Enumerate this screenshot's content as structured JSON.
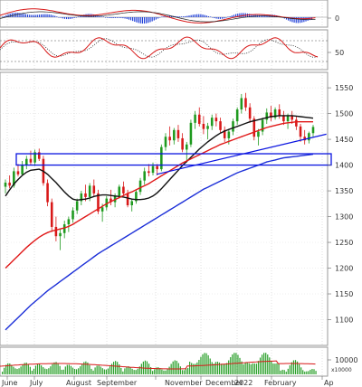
{
  "chart_data": [
    {
      "type": "bar+line",
      "panel": "macd",
      "y_ticks": [
        "0"
      ],
      "series": [
        {
          "kind": "histogram",
          "color": "#1f3fd8"
        },
        {
          "kind": "line",
          "color": "#d81818"
        },
        {
          "kind": "line",
          "color": "#222222"
        }
      ]
    },
    {
      "type": "line",
      "panel": "stochastic",
      "y_ticks": [
        "50"
      ],
      "series": [
        {
          "kind": "line",
          "color": "#d81818"
        },
        {
          "kind": "line",
          "color": "#222222",
          "style": "dotted"
        }
      ]
    },
    {
      "type": "candlestick",
      "panel": "price",
      "ylim": [
        1050,
        1580
      ],
      "y_ticks": [
        "1550",
        "1500",
        "1450",
        "1400",
        "1350",
        "1300",
        "1250",
        "1200",
        "1150",
        "1100"
      ],
      "x_ticks": [
        "June",
        "July",
        "August",
        "September",
        "November",
        "December",
        "2022",
        "February",
        "Ap"
      ],
      "candles": [
        [
          1358,
          1372,
          1345,
          1366
        ],
        [
          1366,
          1380,
          1355,
          1360
        ],
        [
          1360,
          1395,
          1356,
          1388
        ],
        [
          1388,
          1402,
          1378,
          1382
        ],
        [
          1382,
          1408,
          1380,
          1400
        ],
        [
          1400,
          1418,
          1392,
          1412
        ],
        [
          1412,
          1428,
          1400,
          1405
        ],
        [
          1405,
          1430,
          1398,
          1425
        ],
        [
          1425,
          1432,
          1408,
          1412
        ],
        [
          1412,
          1418,
          1360,
          1365
        ],
        [
          1365,
          1372,
          1320,
          1328
        ],
        [
          1328,
          1335,
          1270,
          1280
        ],
        [
          1280,
          1300,
          1252,
          1262
        ],
        [
          1262,
          1275,
          1235,
          1268
        ],
        [
          1268,
          1292,
          1258,
          1285
        ],
        [
          1285,
          1300,
          1270,
          1295
        ],
        [
          1295,
          1318,
          1288,
          1312
        ],
        [
          1312,
          1335,
          1305,
          1330
        ],
        [
          1330,
          1350,
          1322,
          1345
        ],
        [
          1345,
          1362,
          1330,
          1338
        ],
        [
          1338,
          1365,
          1330,
          1360
        ],
        [
          1360,
          1372,
          1340,
          1345
        ],
        [
          1345,
          1352,
          1305,
          1310
        ],
        [
          1310,
          1325,
          1290,
          1318
        ],
        [
          1318,
          1340,
          1312,
          1335
        ],
        [
          1335,
          1352,
          1322,
          1328
        ],
        [
          1328,
          1345,
          1318,
          1340
        ],
        [
          1340,
          1362,
          1335,
          1358
        ],
        [
          1358,
          1368,
          1340,
          1345
        ],
        [
          1345,
          1352,
          1318,
          1322
        ],
        [
          1322,
          1335,
          1310,
          1330
        ],
        [
          1330,
          1352,
          1325,
          1348
        ],
        [
          1348,
          1375,
          1342,
          1370
        ],
        [
          1370,
          1395,
          1362,
          1388
        ],
        [
          1388,
          1402,
          1378,
          1385
        ],
        [
          1385,
          1405,
          1380,
          1398
        ],
        [
          1398,
          1402,
          1380,
          1392
        ],
        [
          1392,
          1440,
          1388,
          1435
        ],
        [
          1435,
          1462,
          1428,
          1455
        ],
        [
          1455,
          1475,
          1438,
          1448
        ],
        [
          1448,
          1472,
          1440,
          1468
        ],
        [
          1468,
          1478,
          1445,
          1452
        ],
        [
          1452,
          1462,
          1425,
          1430
        ],
        [
          1430,
          1445,
          1405,
          1440
        ],
        [
          1440,
          1488,
          1435,
          1482
        ],
        [
          1482,
          1505,
          1470,
          1498
        ],
        [
          1498,
          1512,
          1475,
          1480
        ],
        [
          1480,
          1495,
          1460,
          1470
        ],
        [
          1470,
          1482,
          1450,
          1476
        ],
        [
          1476,
          1498,
          1468,
          1492
        ],
        [
          1492,
          1500,
          1475,
          1485
        ],
        [
          1485,
          1492,
          1462,
          1468
        ],
        [
          1468,
          1475,
          1445,
          1452
        ],
        [
          1452,
          1470,
          1440,
          1465
        ],
        [
          1465,
          1490,
          1458,
          1485
        ],
        [
          1485,
          1512,
          1478,
          1508
        ],
        [
          1508,
          1538,
          1500,
          1530
        ],
        [
          1530,
          1540,
          1505,
          1512
        ],
        [
          1512,
          1520,
          1482,
          1490
        ],
        [
          1490,
          1495,
          1448,
          1455
        ],
        [
          1455,
          1470,
          1438,
          1465
        ],
        [
          1465,
          1492,
          1458,
          1488
        ],
        [
          1488,
          1510,
          1480,
          1502
        ],
        [
          1502,
          1515,
          1485,
          1492
        ],
        [
          1492,
          1512,
          1488,
          1508
        ],
        [
          1508,
          1518,
          1490,
          1495
        ],
        [
          1495,
          1505,
          1478,
          1485
        ],
        [
          1485,
          1500,
          1470,
          1496
        ],
        [
          1496,
          1505,
          1480,
          1488
        ],
        [
          1488,
          1495,
          1468,
          1475
        ],
        [
          1475,
          1480,
          1445,
          1455
        ],
        [
          1455,
          1468,
          1440,
          1448
        ],
        [
          1448,
          1465,
          1442,
          1462
        ],
        [
          1462,
          1478,
          1455,
          1474
        ]
      ],
      "overlays": [
        {
          "kind": "moving-average",
          "color": "#111111",
          "values": [
            1340,
            1352,
            1363,
            1372,
            1380,
            1386,
            1390,
            1391,
            1392,
            1388,
            1382,
            1374,
            1366,
            1357,
            1348,
            1340,
            1334,
            1332,
            1333,
            1334,
            1336,
            1339,
            1341,
            1342,
            1342,
            1341,
            1340,
            1339,
            1338,
            1336,
            1334,
            1333,
            1333,
            1334,
            1336,
            1340,
            1346,
            1354,
            1363,
            1372,
            1381,
            1390,
            1399,
            1407,
            1415,
            1423,
            1431,
            1438,
            1445,
            1451,
            1457,
            1462,
            1466,
            1469,
            1472,
            1475,
            1478,
            1481,
            1484,
            1486,
            1488,
            1490,
            1492,
            1494,
            1495,
            1496,
            1496,
            1496,
            1496,
            1495,
            1494,
            1493,
            1492,
            1491
          ]
        },
        {
          "kind": "moving-average",
          "color": "#e01818",
          "values": [
            1200,
            1208,
            1216,
            1224,
            1232,
            1240,
            1247,
            1254,
            1260,
            1265,
            1269,
            1272,
            1274,
            1276,
            1278,
            1281,
            1285,
            1290,
            1295,
            1300,
            1305,
            1310,
            1315,
            1320,
            1325,
            1329,
            1333,
            1337,
            1341,
            1345,
            1348,
            1352,
            1356,
            1360,
            1364,
            1369,
            1374,
            1379,
            1384,
            1389,
            1394,
            1399,
            1404,
            1408,
            1412,
            1416,
            1420,
            1424,
            1428,
            1432,
            1436,
            1440,
            1443,
            1446,
            1449,
            1452,
            1455,
            1458,
            1461,
            1464,
            1467,
            1470,
            1473,
            1475,
            1477,
            1479,
            1481,
            1482,
            1483,
            1484,
            1484,
            1484,
            1484,
            1484
          ]
        },
        {
          "kind": "moving-average",
          "color": "#1c2fd8",
          "values": [
            1080,
            1088,
            1096,
            1104,
            1112,
            1120,
            1128,
            1135,
            1142,
            1149,
            1156,
            1162,
            1168,
            1174,
            1180,
            1186,
            1192,
            1198,
            1204,
            1210,
            1216,
            1222,
            1228,
            1233,
            1238,
            1243,
            1248,
            1253,
            1258,
            1263,
            1268,
            1273,
            1278,
            1283,
            1288,
            1293,
            1298,
            1303,
            1308,
            1313,
            1318,
            1323,
            1328,
            1333,
            1338,
            1343,
            1348,
            1353,
            1357,
            1361,
            1365,
            1369,
            1373,
            1377,
            1381,
            1385,
            1388,
            1391,
            1394,
            1397,
            1400,
            1403,
            1406,
            1408,
            1410,
            1412,
            1414,
            1415,
            1416,
            1417,
            1418,
            1419,
            1420,
            1421
          ]
        }
      ],
      "annotations": [
        {
          "kind": "rectangle",
          "color": "#0a14e0",
          "y_range": [
            1400,
            1422
          ]
        },
        {
          "kind": "trendline",
          "color": "#0a14e0",
          "from": {
            "candle": 38,
            "price": 1382
          },
          "to": {
            "candle": 74,
            "price": 1460
          }
        }
      ]
    },
    {
      "type": "bar+line",
      "panel": "volume",
      "y_ticks": [
        "10000"
      ],
      "unit_label": "x10000",
      "series": [
        {
          "kind": "histogram",
          "color": "#2aa02a"
        },
        {
          "kind": "moving-average",
          "color": "#d81818"
        }
      ]
    }
  ]
}
